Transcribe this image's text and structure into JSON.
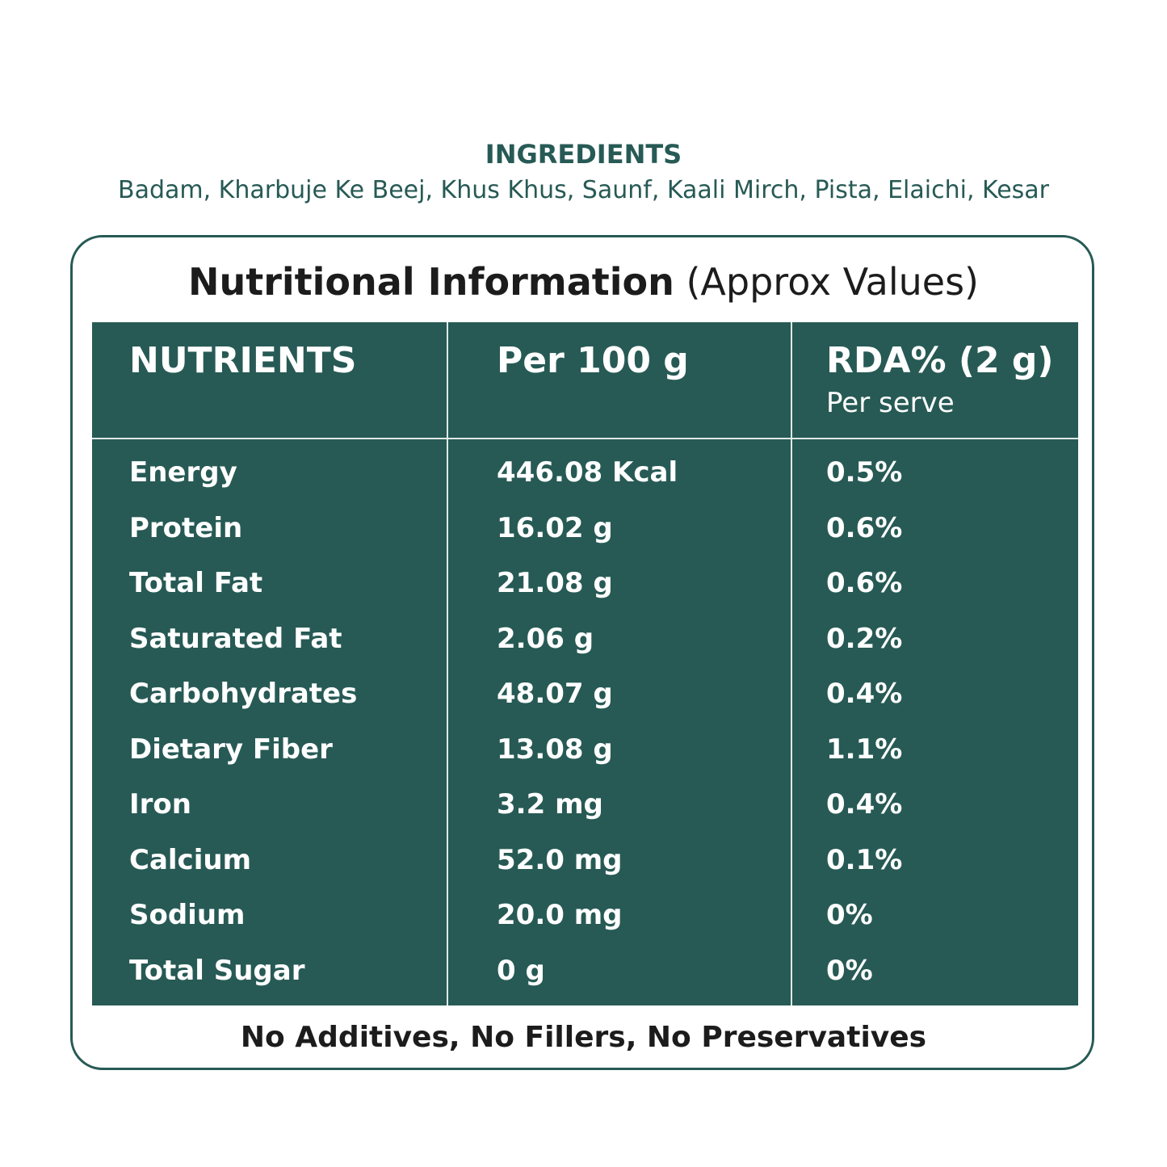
{
  "ingredients": {
    "title": "INGREDIENTS",
    "text": "Badam, Kharbuje Ke Beej, Khus Khus, Saunf, Kaali Mirch, Pista, Elaichi, Kesar"
  },
  "panel": {
    "title_bold": "Nutritional Information",
    "title_light": "(Approx Values)",
    "table": {
      "header": [
        "NUTRIENTS",
        "Per 100 g",
        "RDA% (2 g)"
      ],
      "header_sub": "Per serve",
      "rows": [
        [
          "Energy",
          "446.08 Kcal",
          "0.5%"
        ],
        [
          "Protein",
          "16.02 g",
          "0.6%"
        ],
        [
          "Total Fat",
          "21.08 g",
          "0.6%"
        ],
        [
          "Saturated Fat",
          "2.06 g",
          "0.2%"
        ],
        [
          "Carbohydrates",
          "48.07 g",
          "0.4%"
        ],
        [
          "Dietary Fiber",
          "13.08 g",
          "1.1%"
        ],
        [
          "Iron",
          "3.2 mg",
          "0.4%"
        ],
        [
          "Calcium",
          "52.0 mg",
          "0.1%"
        ],
        [
          "Sodium",
          "20.0 mg",
          "0%"
        ],
        [
          "Total Sugar",
          "0 g",
          "0%"
        ]
      ]
    },
    "footer": "No Additives, No Fillers, No Preservatives"
  }
}
